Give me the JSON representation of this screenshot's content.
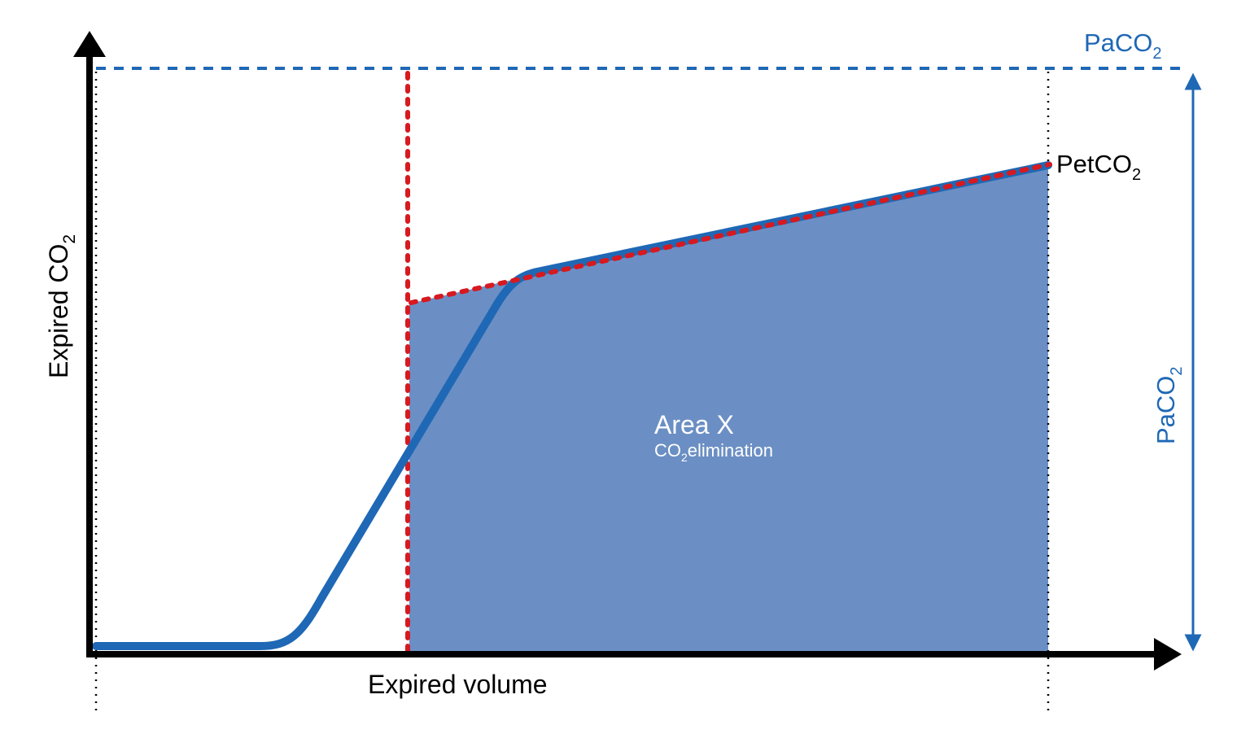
{
  "labels": {
    "y_axis": {
      "main": "Expired CO",
      "sub": "2"
    },
    "x_axis": "Expired volume",
    "paco2_top": {
      "main": "PaCO",
      "sub": "2"
    },
    "paco2_side": {
      "main": "PaCO",
      "sub": "2"
    },
    "petco2": {
      "main": "PetCO",
      "sub": "2"
    },
    "area_title": "Area X",
    "area_subtitle": {
      "pre": "CO",
      "sub": "2",
      "post": "elimination"
    }
  },
  "colors": {
    "axis": "#000000",
    "curve": "#1f68b5",
    "area_fill": "#6b8fc4",
    "red_dotted": "#d71920",
    "paco2_blue": "#1f68b5",
    "area_text": "#ffffff"
  }
}
